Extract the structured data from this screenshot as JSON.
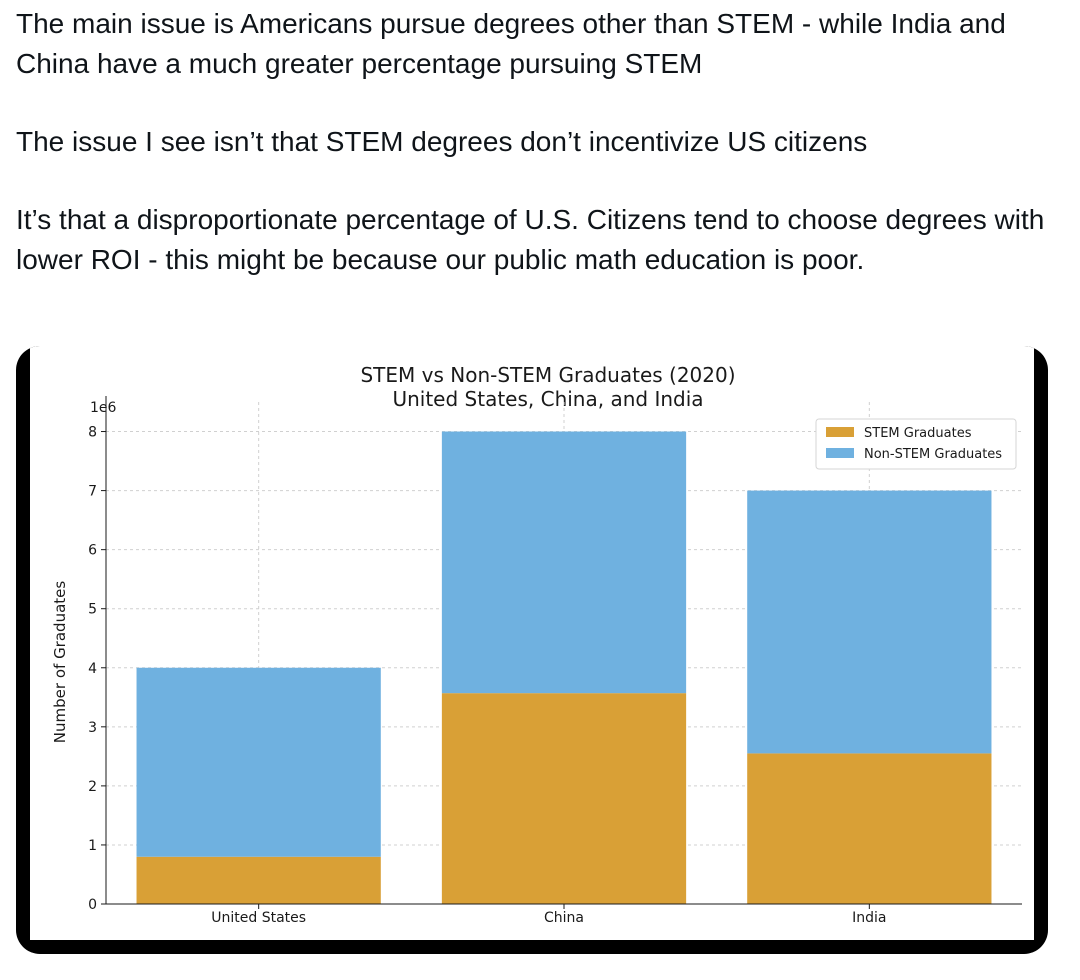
{
  "post": {
    "paragraphs": [
      "The main issue is Americans pursue degrees other than STEM - while India and China have a much greater percentage pursuing STEM",
      "The issue I see isn’t that STEM degrees don’t incentivize US citizens",
      "It’s that a disproportionate percentage of  U.S. Citizens tend to choose degrees with lower ROI - this might be because our public math education is poor."
    ]
  },
  "chart_data": {
    "type": "bar",
    "stacked": true,
    "title": "STEM vs Non-STEM Graduates (2020)",
    "subtitle": "United States, China, and India",
    "ylabel": "Number of Graduates",
    "xlabel": "",
    "y_scale_label": "1e6",
    "categories": [
      "United States",
      "China",
      "India"
    ],
    "series": [
      {
        "name": "STEM Graduates",
        "color": "#d9a036",
        "values": [
          800000,
          3570000,
          2550000
        ]
      },
      {
        "name": "Non-STEM Graduates",
        "color": "#6fb1e0",
        "values": [
          3200000,
          4430000,
          4450000
        ]
      }
    ],
    "yticks": [
      "0",
      "1",
      "2",
      "3",
      "4",
      "5",
      "6",
      "7",
      "8"
    ],
    "ylim": [
      0,
      8500000
    ],
    "grid": true,
    "legend_position": "top-right"
  }
}
